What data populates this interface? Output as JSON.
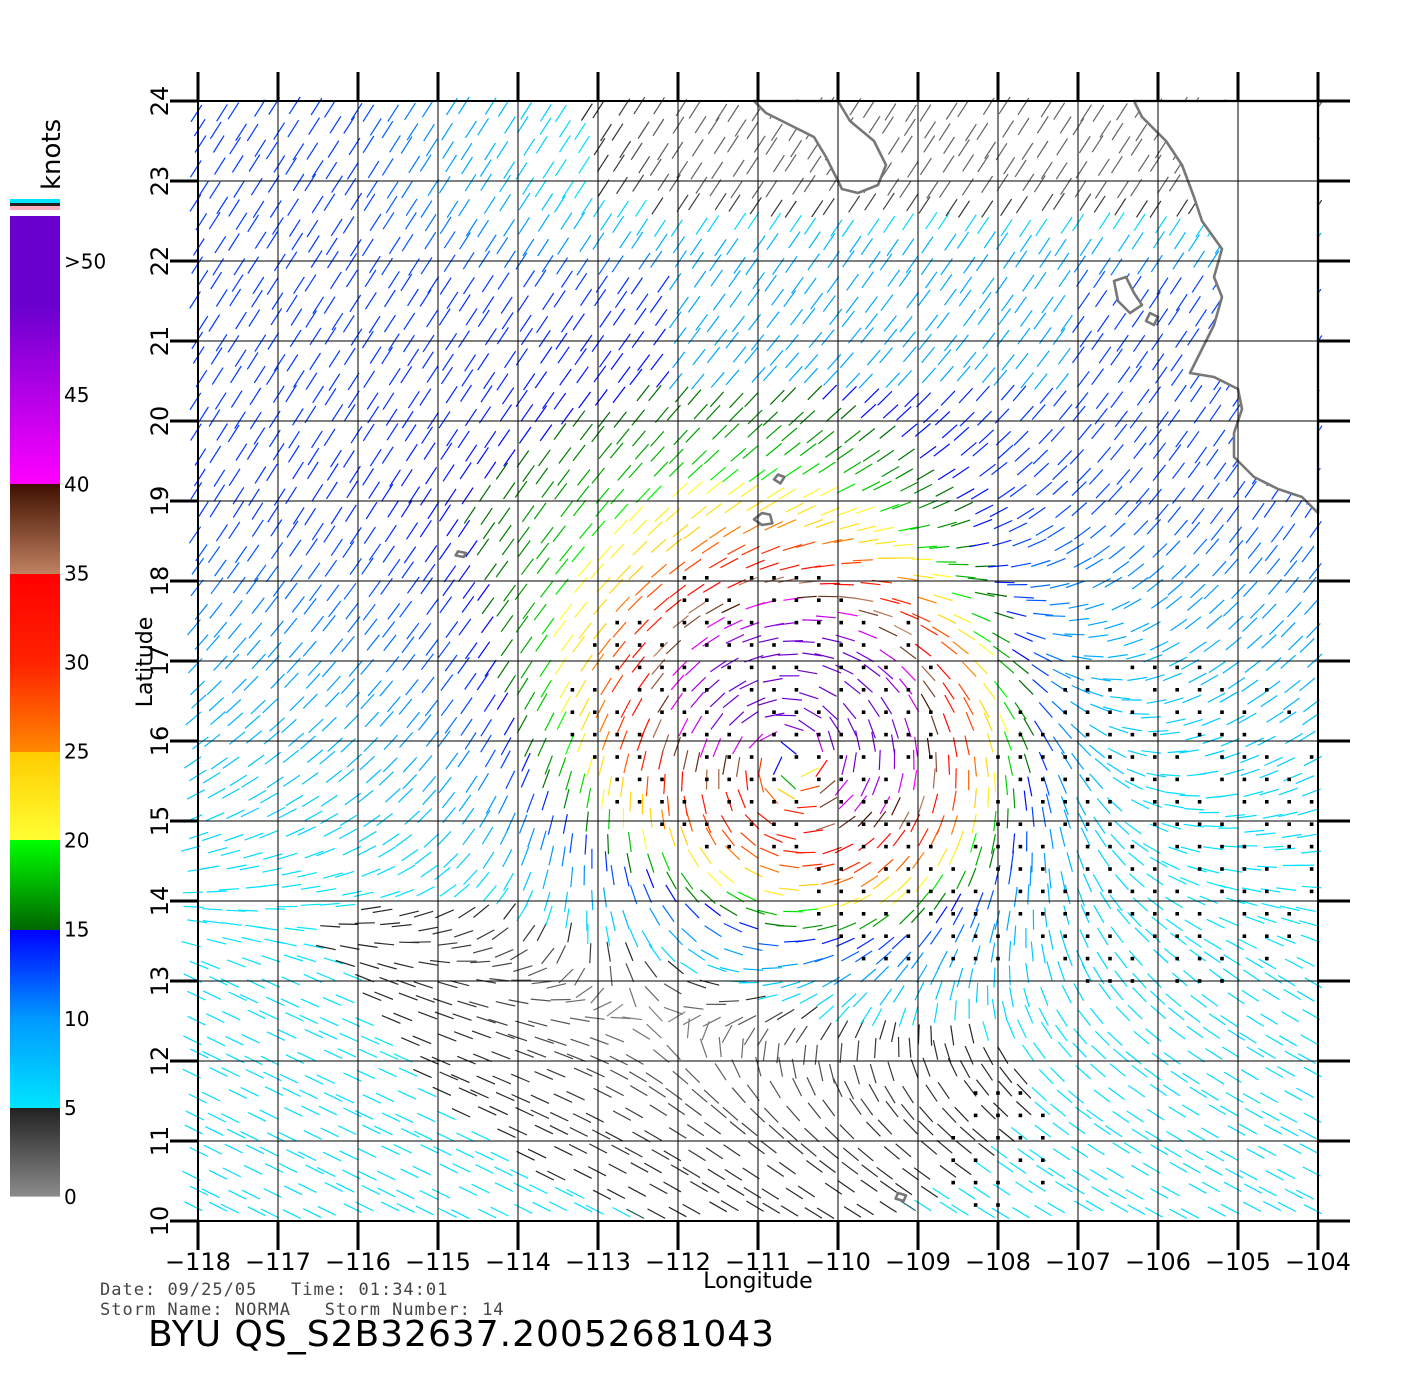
{
  "product_id": "BYU QS_S2B32637.20052681043",
  "info": {
    "date_label": "Date:",
    "date": "09/25/05",
    "time_label": "Time:",
    "time": "01:34:01",
    "storm_name_label": "Storm Name:",
    "storm_name": "NORMA",
    "storm_number_label": "Storm Number:",
    "storm_number": "14"
  },
  "axes": {
    "x_label": "Longitude",
    "y_label": "Latitude",
    "x_ticks": [
      "−118",
      "−117",
      "−116",
      "−115",
      "−114",
      "−113",
      "−112",
      "−111",
      "−110",
      "−109",
      "−108",
      "−107",
      "−106",
      "−105",
      "−104"
    ],
    "y_ticks": [
      "10",
      "11",
      "12",
      "13",
      "14",
      "15",
      "16",
      "17",
      "18",
      "19",
      "20",
      "21",
      "22",
      "23",
      "24"
    ],
    "lon_range": [
      -118,
      -104
    ],
    "lat_range": [
      10,
      24
    ]
  },
  "legend": {
    "title": "knots",
    "tick_labels": [
      {
        "text": ">50",
        "value": 52.5
      },
      {
        "text": "45",
        "value": 45
      },
      {
        "text": "40",
        "value": 40
      },
      {
        "text": "35",
        "value": 35
      },
      {
        "text": "30",
        "value": 30
      },
      {
        "text": "25",
        "value": 25
      },
      {
        "text": "20",
        "value": 20
      },
      {
        "text": "15",
        "value": 15
      },
      {
        "text": "10",
        "value": 10
      },
      {
        "text": "5",
        "value": 5
      },
      {
        "text": "0",
        "value": 0
      }
    ],
    "color_stops": [
      {
        "knots": 0,
        "color": "#8c8c8c"
      },
      {
        "knots": 5,
        "color": "#222222"
      },
      {
        "knots": 5.01,
        "color": "#00e5ff"
      },
      {
        "knots": 10,
        "color": "#0099ff"
      },
      {
        "knots": 15,
        "color": "#0000ff"
      },
      {
        "knots": 15.01,
        "color": "#006600"
      },
      {
        "knots": 20,
        "color": "#00ff00"
      },
      {
        "knots": 20.01,
        "color": "#ffff33"
      },
      {
        "knots": 25,
        "color": "#ffcc00"
      },
      {
        "knots": 25.01,
        "color": "#ff8800"
      },
      {
        "knots": 30,
        "color": "#ff2200"
      },
      {
        "knots": 35,
        "color": "#ff0000"
      },
      {
        "knots": 35.01,
        "color": "#c08060"
      },
      {
        "knots": 40,
        "color": "#401000"
      },
      {
        "knots": 40.01,
        "color": "#ff00ff"
      },
      {
        "knots": 50,
        "color": "#6a00d0"
      }
    ]
  },
  "features": {
    "storm_center": {
      "lon": -110.6,
      "lat": 15.8
    },
    "coastline_color": "#777777",
    "grid_color": "#000000"
  }
}
